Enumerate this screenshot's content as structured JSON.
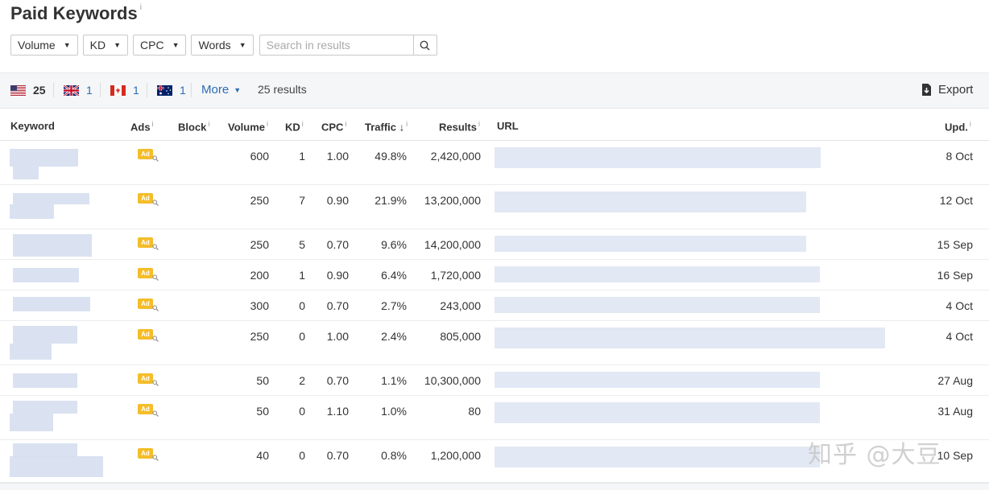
{
  "page": {
    "title": "Paid Keywords",
    "title_info": "i"
  },
  "filters": {
    "volume": "Volume",
    "kd": "KD",
    "cpc": "CPC",
    "words": "Words",
    "search_placeholder": "Search in results"
  },
  "toolbar": {
    "countries": [
      {
        "code": "us",
        "count": "25"
      },
      {
        "code": "gb",
        "count": "1"
      },
      {
        "code": "ca",
        "count": "1"
      },
      {
        "code": "au",
        "count": "1"
      }
    ],
    "more_label": "More",
    "results_count": "25 results",
    "export_label": "Export"
  },
  "table": {
    "columns": {
      "keyword": "Keyword",
      "ads": "Ads",
      "block": "Block",
      "volume": "Volume",
      "kd": "KD",
      "cpc": "CPC",
      "traffic": "Traffic",
      "results": "Results",
      "url": "URL",
      "updated": "Upd."
    },
    "info_mark": "i",
    "ad_badge": "Ad",
    "rows": [
      {
        "volume": "600",
        "kd": "1",
        "cpc": "1.00",
        "traffic": "49.8%",
        "results": "2,420,000",
        "updated": "8 Oct"
      },
      {
        "volume": "250",
        "kd": "7",
        "cpc": "0.90",
        "traffic": "21.9%",
        "results": "13,200,000",
        "updated": "12 Oct"
      },
      {
        "volume": "250",
        "kd": "5",
        "cpc": "0.70",
        "traffic": "9.6%",
        "results": "14,200,000",
        "updated": "15 Sep"
      },
      {
        "volume": "200",
        "kd": "1",
        "cpc": "0.90",
        "traffic": "6.4%",
        "results": "1,720,000",
        "updated": "16 Sep"
      },
      {
        "volume": "300",
        "kd": "0",
        "cpc": "0.70",
        "traffic": "2.7%",
        "results": "243,000",
        "updated": "4 Oct"
      },
      {
        "volume": "250",
        "kd": "0",
        "cpc": "1.00",
        "traffic": "2.4%",
        "results": "805,000",
        "updated": "4 Oct"
      },
      {
        "volume": "50",
        "kd": "2",
        "cpc": "0.70",
        "traffic": "1.1%",
        "results": "10,300,000",
        "updated": "27 Aug"
      },
      {
        "volume": "50",
        "kd": "0",
        "cpc": "1.10",
        "traffic": "1.0%",
        "results": "80",
        "updated": "31 Aug"
      },
      {
        "volume": "40",
        "kd": "0",
        "cpc": "0.70",
        "traffic": "0.8%",
        "results": "1,200,000",
        "updated": "10 Sep"
      }
    ]
  },
  "watermark": "知乎 @大豆",
  "colors": {
    "link": "#2d6cb5",
    "ad_badge": "#f4bd29",
    "toolbar_bg": "#f5f6f8"
  }
}
